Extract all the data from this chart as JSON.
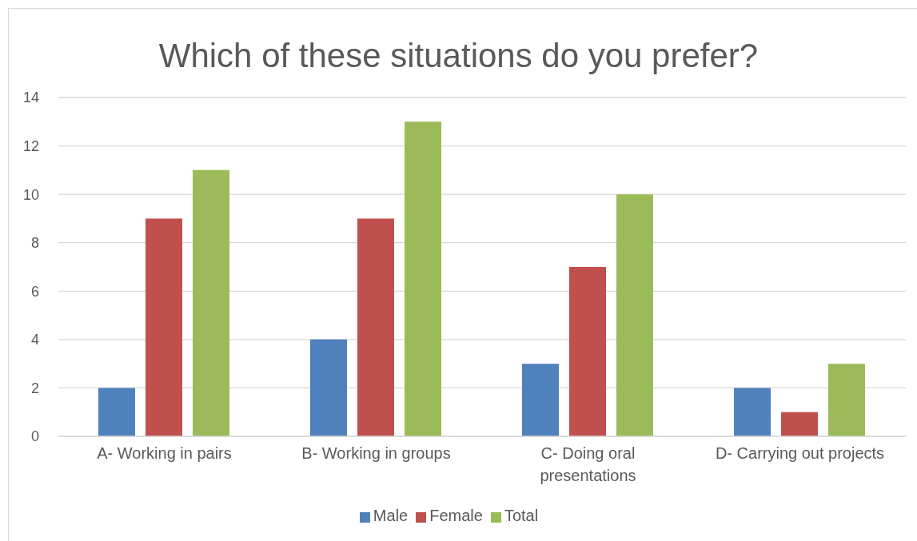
{
  "chart_data": {
    "type": "bar",
    "title": "Which of these situations do you prefer?",
    "categories": [
      "A- Working in pairs",
      "B- Working in groups",
      "C- Doing oral presentations",
      "D- Carrying out projects"
    ],
    "series": [
      {
        "name": "Male",
        "color": "#4f81bd",
        "values": [
          2,
          4,
          3,
          2
        ]
      },
      {
        "name": "Female",
        "color": "#c0504d",
        "values": [
          9,
          9,
          7,
          1
        ]
      },
      {
        "name": "Total",
        "color": "#9bbb59",
        "values": [
          11,
          13,
          10,
          3
        ]
      }
    ],
    "ylim": [
      0,
      14
    ],
    "yticks": [
      0,
      2,
      4,
      6,
      8,
      10,
      12,
      14
    ],
    "grid": "y",
    "legend": "bottom"
  }
}
